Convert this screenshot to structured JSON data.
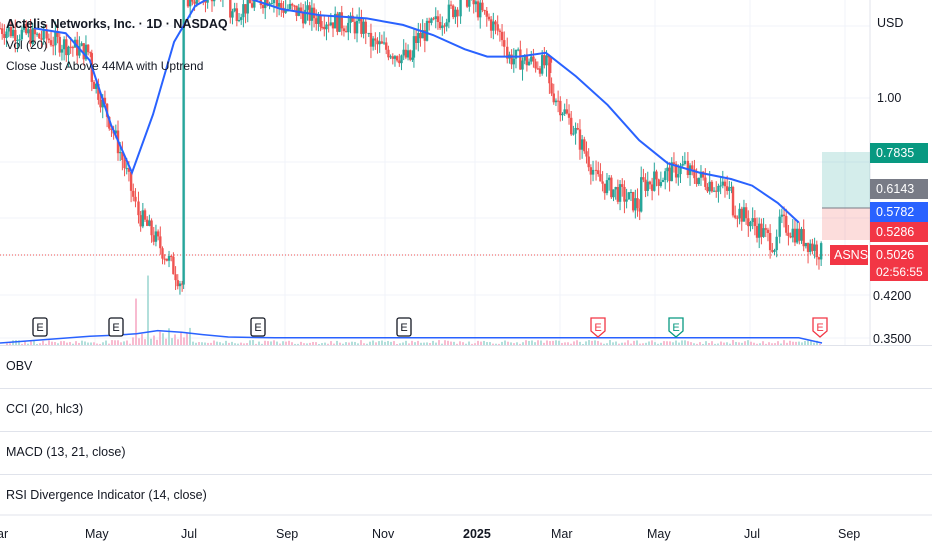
{
  "legend": {
    "title": "Actelis Networks, Inc. · 1D · NASDAQ",
    "vol": "Vol (20)",
    "strategy": "Close Just Above 44MA with Uptrend"
  },
  "currency": "USD",
  "panes": [
    {
      "label": "OBV"
    },
    {
      "label": "CCI (20, hlc3)"
    },
    {
      "label": "MACD (13, 21, close)"
    },
    {
      "label": "RSI Divergence Indicator (14, close)"
    }
  ],
  "price_labels": {
    "target": "0.7835",
    "mid": "0.6143",
    "ma": "0.5782",
    "stop": "0.5286",
    "ticker": "ASNS",
    "last": "0.5026",
    "countdown": "02:56:55"
  },
  "colors": {
    "up": "#26a69a",
    "down": "#ef5350",
    "ma": "#2962ff",
    "target_bg": "#089981",
    "mid_bg": "#787b86",
    "ma_bg": "#2962ff",
    "stop_bg": "#f23645",
    "last_bg": "#f23645"
  },
  "earnings_markers": [
    {
      "month": "Mar (early)",
      "icon": "E",
      "kind": "neutral"
    },
    {
      "month": "May",
      "icon": "E",
      "kind": "neutral"
    },
    {
      "month": "Aug",
      "icon": "E",
      "kind": "neutral"
    },
    {
      "month": "Nov",
      "icon": "E",
      "kind": "neutral"
    },
    {
      "month": "Mar",
      "icon": "E",
      "kind": "negative"
    },
    {
      "month": "May",
      "icon": "E",
      "kind": "positive"
    },
    {
      "month": "Aug",
      "icon": "E",
      "kind": "negative"
    }
  ],
  "chart_data": {
    "type": "candlestick",
    "scale": "log",
    "y_ticks": [
      "1.00",
      "0.4200",
      "0.3500"
    ],
    "x_ticks": [
      "ar",
      "May",
      "Jul",
      "Sep",
      "Nov",
      "2025",
      "Mar",
      "May",
      "Jul",
      "Sep"
    ],
    "ylim": [
      0.34,
      1.6
    ],
    "series": [
      {
        "name": "Close Just Above 44MA with Uptrend",
        "points": [
          [
            "2024-03-25",
            1.36
          ],
          [
            "2024-04-15",
            1.33
          ],
          [
            "2024-05-01",
            1.18
          ],
          [
            "2024-05-15",
            0.89
          ],
          [
            "2024-05-29",
            0.72
          ],
          [
            "2024-06-12",
            0.93
          ],
          [
            "2024-06-26",
            1.28
          ],
          [
            "2024-07-10",
            1.5
          ],
          [
            "2024-07-24",
            1.58
          ],
          [
            "2024-08-15",
            1.55
          ],
          [
            "2024-09-05",
            1.48
          ],
          [
            "2024-10-01",
            1.44
          ],
          [
            "2024-11-01",
            1.42
          ],
          [
            "2024-11-25",
            1.38
          ],
          [
            "2024-12-15",
            1.32
          ],
          [
            "2025-01-05",
            1.24
          ],
          [
            "2025-01-20",
            1.2
          ],
          [
            "2025-02-10",
            1.2
          ],
          [
            "2025-02-28",
            1.22
          ],
          [
            "2025-03-20",
            1.1
          ],
          [
            "2025-04-10",
            0.97
          ],
          [
            "2025-05-01",
            0.83
          ],
          [
            "2025-05-20",
            0.75
          ],
          [
            "2025-06-10",
            0.72
          ],
          [
            "2025-07-01",
            0.7
          ],
          [
            "2025-07-15",
            0.68
          ],
          [
            "2025-08-01",
            0.63
          ],
          [
            "2025-08-15",
            0.578
          ]
        ]
      },
      {
        "name": "Vol (20)",
        "points": [
          [
            "2024-05-01",
            0.11
          ],
          [
            "2024-05-15",
            0.12
          ],
          [
            "2024-06-01",
            0.14
          ],
          [
            "2024-06-15",
            0.18
          ],
          [
            "2024-07-01",
            0.16
          ],
          [
            "2024-07-15",
            0.13
          ],
          [
            "2024-08-01",
            0.1
          ],
          [
            "2024-09-01",
            0.09
          ],
          [
            "2025-03-01",
            0.09
          ],
          [
            "2025-08-15",
            0.09
          ]
        ]
      }
    ],
    "candles": [
      [
        "2024-03",
        1.36,
        1.3
      ],
      [
        "2024-04",
        1.3,
        1.22
      ],
      [
        "2024-05",
        1.1,
        0.62
      ],
      [
        "2024-06",
        0.6,
        0.44
      ],
      [
        "2024-07",
        1.55,
        1.6
      ],
      [
        "2024-08",
        1.45,
        1.58
      ],
      [
        "2024-09",
        1.5,
        1.42
      ],
      [
        "2024-10",
        1.42,
        1.36
      ],
      [
        "2024-11",
        1.28,
        1.18
      ],
      [
        "2024-12",
        1.28,
        1.5
      ],
      [
        "2025-01",
        1.6,
        1.3
      ],
      [
        "2025-02",
        1.2,
        1.15
      ],
      [
        "2025-03",
        1.05,
        0.73
      ],
      [
        "2025-04",
        0.7,
        0.62
      ],
      [
        "2025-05",
        0.68,
        0.74
      ],
      [
        "2025-06",
        0.72,
        0.66
      ],
      [
        "2025-07",
        0.62,
        0.52
      ],
      [
        "2025-08",
        0.58,
        0.5026
      ]
    ]
  }
}
